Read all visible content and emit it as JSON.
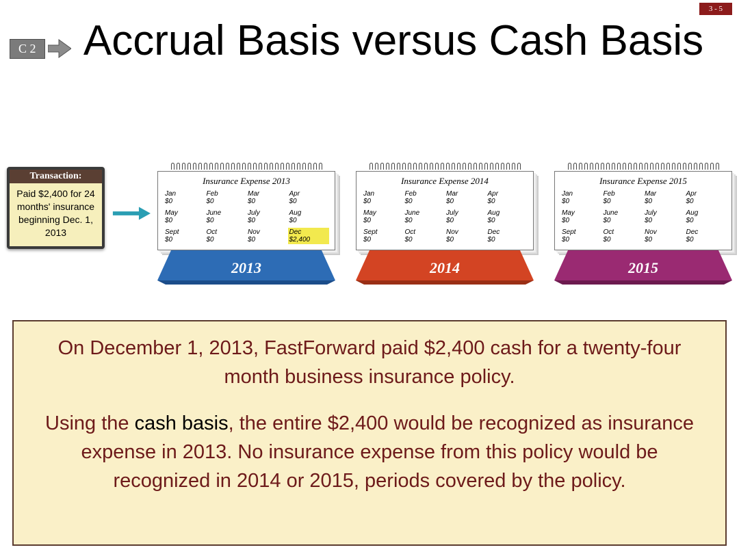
{
  "page_number": "3 - 5",
  "badge": "C 2",
  "title": "Accrual Basis versus Cash Basis",
  "transaction": {
    "header": "Transaction:",
    "body": "Paid $2,400 for 24 months' insurance beginning Dec. 1, 2013"
  },
  "arrow_color": "#2a9eb3",
  "calendars": [
    {
      "year": "2013",
      "stand_color": "#2d6cb5",
      "stand_shadow": "#1b4d8a",
      "title": "Insurance Expense 2013",
      "months": [
        {
          "m": "Jan",
          "v": "$0"
        },
        {
          "m": "Feb",
          "v": "$0"
        },
        {
          "m": "Mar",
          "v": "$0"
        },
        {
          "m": "Apr",
          "v": "$0"
        },
        {
          "m": "May",
          "v": "$0"
        },
        {
          "m": "June",
          "v": "$0"
        },
        {
          "m": "July",
          "v": "$0"
        },
        {
          "m": "Aug",
          "v": "$0"
        },
        {
          "m": "Sept",
          "v": "$0"
        },
        {
          "m": "Oct",
          "v": "$0"
        },
        {
          "m": "Nov",
          "v": "$0"
        },
        {
          "m": "Dec",
          "v": "$2,400",
          "hl": true
        }
      ]
    },
    {
      "year": "2014",
      "stand_color": "#d34423",
      "stand_shadow": "#9a2f16",
      "title": "Insurance Expense 2014",
      "months": [
        {
          "m": "Jan",
          "v": "$0"
        },
        {
          "m": "Feb",
          "v": "$0"
        },
        {
          "m": "Mar",
          "v": "$0"
        },
        {
          "m": "Apr",
          "v": "$0"
        },
        {
          "m": "May",
          "v": "$0"
        },
        {
          "m": "June",
          "v": "$0"
        },
        {
          "m": "July",
          "v": "$0"
        },
        {
          "m": "Aug",
          "v": "$0"
        },
        {
          "m": "Sept",
          "v": "$0"
        },
        {
          "m": "Oct",
          "v": "$0"
        },
        {
          "m": "Nov",
          "v": "$0"
        },
        {
          "m": "Dec",
          "v": "$0"
        }
      ]
    },
    {
      "year": "2015",
      "stand_color": "#9a2a72",
      "stand_shadow": "#6c1a4f",
      "title": "Insurance Expense 2015",
      "months": [
        {
          "m": "Jan",
          "v": "$0"
        },
        {
          "m": "Feb",
          "v": "$0"
        },
        {
          "m": "Mar",
          "v": "$0"
        },
        {
          "m": "Apr",
          "v": "$0"
        },
        {
          "m": "May",
          "v": "$0"
        },
        {
          "m": "June",
          "v": "$0"
        },
        {
          "m": "July",
          "v": "$0"
        },
        {
          "m": "Aug",
          "v": "$0"
        },
        {
          "m": "Sept",
          "v": "$0"
        },
        {
          "m": "Oct",
          "v": "$0"
        },
        {
          "m": "Nov",
          "v": "$0"
        },
        {
          "m": "Dec",
          "v": "$0"
        }
      ]
    }
  ],
  "explanation": {
    "p1": "On December 1, 2013, FastForward paid $2,400 cash for a twenty-four month business insurance policy.",
    "p2_pre": "Using the ",
    "p2_accent": "cash basis",
    "p2_post": ", the entire $2,400 would be recognized as insurance expense in 2013. No insurance expense from this policy would be recognized in 2014 or 2015, periods covered by the policy."
  },
  "colors": {
    "page_num_bg": "#8c1b1b",
    "explain_bg": "#faf0c8",
    "explain_border": "#5b3c2f",
    "explain_text": "#6d1a1a"
  }
}
